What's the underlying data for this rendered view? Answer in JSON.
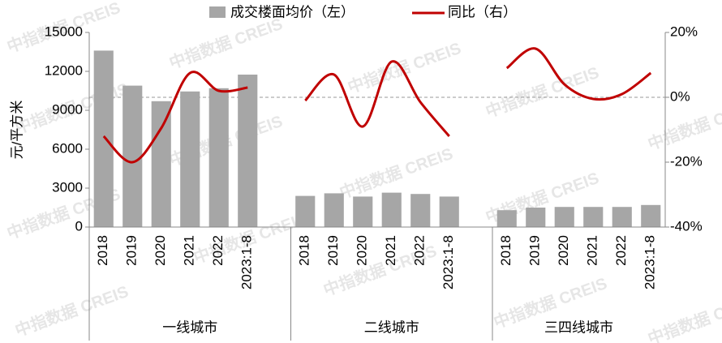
{
  "chart_data": {
    "type": "bar_line",
    "watermark": "中指数据 CREIS",
    "y_label": "元/平方米",
    "categories": [
      "2018",
      "2019",
      "2020",
      "2021",
      "2022",
      "2023:1-8",
      null,
      "2018",
      "2019",
      "2020",
      "2021",
      "2022",
      "2023:1-8",
      null,
      "2018",
      "2019",
      "2020",
      "2021",
      "2022",
      "2023:1-8"
    ],
    "group_labels": [
      "一线城市",
      "二线城市",
      "三四线城市"
    ],
    "series": [
      {
        "name": "成交楼面均价（左）",
        "type": "bar",
        "color": "#a6a6a6",
        "values": [
          13600,
          10900,
          9700,
          10450,
          10700,
          11750,
          null,
          2400,
          2600,
          2350,
          2650,
          2550,
          2350,
          null,
          1300,
          1500,
          1550,
          1550,
          1550,
          1700
        ]
      },
      {
        "name": "同比（右）",
        "type": "line",
        "axis": "y2",
        "color": "#c00000",
        "values": [
          -12,
          -20,
          -9.5,
          7.5,
          2,
          3,
          null,
          -1,
          7,
          -9,
          11,
          -1.5,
          -12,
          null,
          9,
          15,
          4,
          -0.5,
          1,
          7.5
        ]
      }
    ],
    "ylim": [
      0,
      15000
    ],
    "yticks": [
      0,
      3000,
      6000,
      9000,
      12000,
      15000
    ],
    "y2lim": [
      -40,
      20
    ],
    "y2ticks": [
      {
        "value": -40,
        "label": "-40%"
      },
      {
        "value": -20,
        "label": "-20%"
      },
      {
        "value": 0,
        "label": "0%"
      },
      {
        "value": 20,
        "label": "20%"
      }
    ],
    "reference_line": 0
  }
}
